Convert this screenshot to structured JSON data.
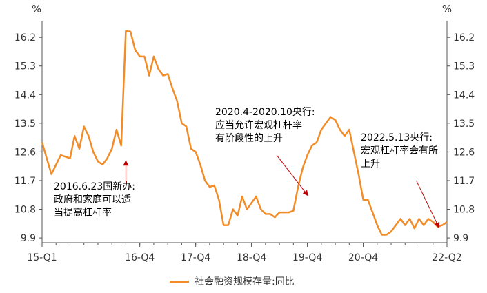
{
  "chart_data": {
    "type": "line",
    "unit_left": "%",
    "unit_right": "%",
    "y_ticks": [
      "16.2",
      "15.3",
      "14.4",
      "13.5",
      "12.6",
      "11.7",
      "10.8",
      "9.9"
    ],
    "y_tick_values": [
      16.2,
      15.3,
      14.4,
      13.5,
      12.6,
      11.7,
      10.8,
      9.9
    ],
    "ylim": [
      9.75,
      16.55
    ],
    "x_ticks": [
      "15-Q1",
      "16-Q4",
      "17-Q4",
      "18-Q4",
      "19-Q4",
      "20-Q4",
      "22-Q2"
    ],
    "x_tick_positions": [
      2015.0,
      2016.75,
      2017.75,
      2018.75,
      2019.75,
      2020.75,
      2022.25
    ],
    "xlim": [
      2015.0,
      2022.25
    ],
    "series": [
      {
        "name": "社会融资规模存量:同比",
        "color": "#F28C28",
        "x": [
          2015.0,
          2015.083,
          2015.167,
          2015.25,
          2015.333,
          2015.417,
          2015.5,
          2015.583,
          2015.667,
          2015.75,
          2015.833,
          2015.917,
          2016.0,
          2016.083,
          2016.167,
          2016.25,
          2016.333,
          2016.417,
          2016.5,
          2016.583,
          2016.667,
          2016.75,
          2016.833,
          2016.917,
          2017.0,
          2017.083,
          2017.167,
          2017.25,
          2017.333,
          2017.417,
          2017.5,
          2017.583,
          2017.667,
          2017.75,
          2017.833,
          2017.917,
          2018.0,
          2018.083,
          2018.167,
          2018.25,
          2018.333,
          2018.417,
          2018.5,
          2018.583,
          2018.667,
          2018.75,
          2018.833,
          2018.917,
          2019.0,
          2019.083,
          2019.167,
          2019.25,
          2019.333,
          2019.417,
          2019.5,
          2019.583,
          2019.667,
          2019.75,
          2019.833,
          2019.917,
          2020.0,
          2020.083,
          2020.167,
          2020.25,
          2020.333,
          2020.417,
          2020.5,
          2020.583,
          2020.667,
          2020.75,
          2020.833,
          2020.917,
          2021.0,
          2021.083,
          2021.167,
          2021.25,
          2021.333,
          2021.417,
          2021.5,
          2021.583,
          2021.667,
          2021.75,
          2021.833,
          2021.917,
          2022.0,
          2022.083,
          2022.167,
          2022.25
        ],
        "values": [
          12.9,
          12.4,
          11.9,
          12.2,
          12.5,
          12.45,
          12.4,
          13.1,
          12.7,
          13.4,
          13.1,
          12.6,
          12.3,
          12.2,
          12.4,
          12.7,
          13.3,
          12.8,
          16.4,
          16.38,
          15.8,
          15.6,
          15.6,
          15.0,
          15.6,
          15.2,
          15.0,
          15.05,
          14.6,
          14.2,
          13.5,
          13.4,
          12.7,
          12.6,
          12.2,
          11.7,
          11.5,
          11.55,
          11.1,
          10.3,
          10.3,
          10.8,
          10.6,
          11.2,
          10.8,
          11.0,
          11.2,
          10.8,
          10.65,
          10.65,
          10.55,
          10.7,
          10.7,
          10.7,
          10.75,
          11.5,
          12.1,
          12.5,
          12.8,
          12.9,
          13.3,
          13.5,
          13.7,
          13.6,
          13.3,
          13.1,
          13.3,
          12.6,
          11.9,
          11.1,
          11.1,
          10.7,
          10.3,
          10.0,
          10.0,
          10.1,
          10.3,
          10.5,
          10.3,
          10.5,
          10.2,
          10.5,
          10.3,
          10.5,
          10.4,
          10.25,
          10.3,
          10.4
        ]
      }
    ],
    "annotations": [
      {
        "lines": [
          "2016.6.23国新办:",
          "政府和家庭可以适",
          "当提高杠杆率"
        ],
        "arrow_to": [
          2016.5,
          12.3
        ],
        "arrow_from": [
          2016.5,
          11.6
        ]
      },
      {
        "lines": [
          "2020.4-2020.10央行:",
          "应当允许宏观杠杆率",
          "有阶段性的上升"
        ],
        "arrow_to": [
          2019.75,
          11.25
        ],
        "arrow_from": [
          2019.2,
          12.5
        ]
      },
      {
        "lines": [
          "2022.5.13央行:",
          "宏观杠杆率会有所",
          "上升"
        ],
        "arrow_to": [
          2022.1,
          10.25
        ],
        "arrow_from": [
          2021.7,
          11.7
        ]
      }
    ],
    "legend": {
      "position": "bottom",
      "label": "社会融资规模存量:同比"
    },
    "grid": false,
    "annotation_arrow_color": "#C00000"
  }
}
